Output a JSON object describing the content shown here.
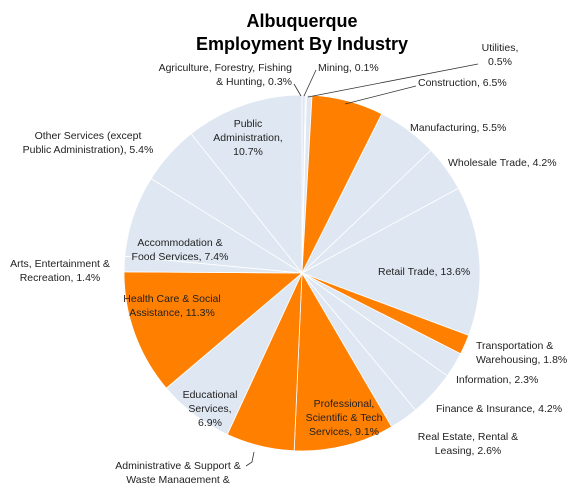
{
  "chart_data": {
    "type": "pie",
    "title": [
      "Albuquerque",
      "Employment By Industry"
    ],
    "labels": [
      [
        "Agriculture, Forestry, Fishing",
        "& Hunting, 0.3%"
      ],
      [
        "Mining, 0.1%"
      ],
      [
        "Utilities,",
        "0.5%"
      ],
      [
        "Construction, 6.5%"
      ],
      [
        "Manufacturing, 5.5%"
      ],
      [
        "Wholesale Trade, 4.2%"
      ],
      [
        "Retail Trade, 13.6%"
      ],
      [
        "Transportation &",
        "Warehousing, 1.8%"
      ],
      [
        "Information, 2.3%"
      ],
      [
        "Finance & Insurance, 4.2%"
      ],
      [
        "Real Estate, Rental &",
        "Leasing, 2.6%"
      ],
      [
        "Professional,",
        "Scientific & Tech",
        "Services, 9.1%"
      ],
      [
        "Administrative & Support &",
        "Waste Management &"
      ],
      [
        "Educational",
        "Services,",
        "6.9%"
      ],
      [
        "Health Care & Social",
        "Assistance, 11.3%"
      ],
      [
        "Arts, Entertainment &",
        "Recreation, 1.4%"
      ],
      [
        "Accommodation &",
        "Food Services, 7.4%"
      ],
      [
        "Other Services (except",
        "Public Administration), 5.4%"
      ],
      [
        "Public",
        "Administration,",
        "10.7%"
      ]
    ],
    "values": [
      0.3,
      0.1,
      0.5,
      6.5,
      5.5,
      4.2,
      13.6,
      1.8,
      2.3,
      4.2,
      2.6,
      9.1,
      6.2,
      6.9,
      11.3,
      1.4,
      7.4,
      5.4,
      10.7
    ],
    "colors": [
      "#dfe7f2",
      "#dfe7f2",
      "#dfe7f2",
      "#ff7f00",
      "#dfe7f2",
      "#dfe7f2",
      "#dfe7f2",
      "#ff7f00",
      "#dfe7f2",
      "#dfe7f2",
      "#dfe7f2",
      "#ff7f00",
      "#ff7f00",
      "#dfe7f2",
      "#ff7f00",
      "#dfe7f2",
      "#dfe7f2",
      "#dfe7f2",
      "#dfe7f2"
    ]
  }
}
